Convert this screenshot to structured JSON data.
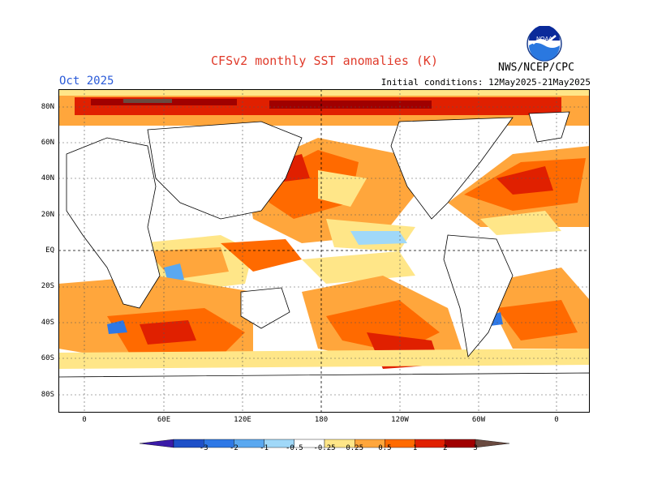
{
  "header": {
    "title": "CFSv2 monthly SST anomalies (K)",
    "month": "Oct 2025",
    "agency": "NWS/NCEP/CPC",
    "initial_conditions": "Initial conditions: 12May2025-21May2025",
    "logo_text": "NOAA"
  },
  "map": {
    "lat_labels": [
      "80N",
      "60N",
      "40N",
      "20N",
      "EQ",
      "20S",
      "40S",
      "60S",
      "80S"
    ],
    "lon_labels": [
      "0",
      "60E",
      "120E",
      "180",
      "120W",
      "60W",
      "0"
    ]
  },
  "colorbar": {
    "labels": [
      "-3",
      "-2",
      "-1",
      "-0.5",
      "-0.25",
      "0.25",
      "0.5",
      "1",
      "2",
      "3"
    ],
    "colors": [
      "#3a1aa8",
      "#1e50c8",
      "#2e78e6",
      "#5aa8f0",
      "#a0d8f8",
      "#ffffff",
      "#ffe688",
      "#ffa63c",
      "#ff6a00",
      "#e02000",
      "#a00000",
      "#6a4a40"
    ]
  },
  "colors": {
    "title": "#e03a2a",
    "month": "#2a5ad8",
    "land": "#ffffff",
    "neutral_ocean": "#ffffff"
  }
}
